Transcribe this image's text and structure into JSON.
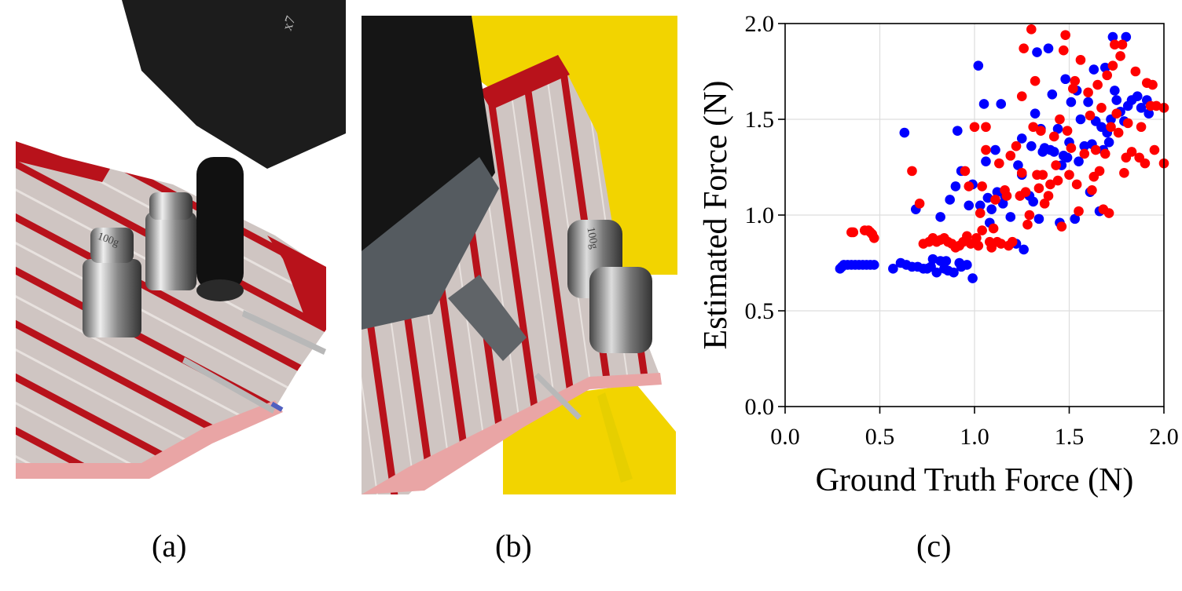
{
  "panels": {
    "a": {
      "caption": "(a)",
      "content": "photo: robot gripper pressing on knitted red-and-pink striped sensor fabric with two 100g weights and alligator clips",
      "weight_label": "100g"
    },
    "b": {
      "caption": "(b)",
      "content": "photo: knitted sensor fabric draped over yellow robot arm, gripper pressing with two weights and alligator clip",
      "weight_label": "100g"
    },
    "c": {
      "caption": "(c)"
    }
  },
  "colors": {
    "series_blue": "#0000ff",
    "series_red": "#ff0000",
    "grid": "#dddddd",
    "fabric_red": "#b8121b",
    "fabric_pink": "#e9a5a5",
    "fabric_grey": "#cfc5c2",
    "robot_yellow": "#f2d400",
    "gripper_black": "#1c1c1c"
  },
  "chart_data": {
    "type": "scatter",
    "title": "",
    "xlabel": "Ground Truth Force (N)",
    "ylabel": "Estimated Force (N)",
    "xlim": [
      0.0,
      2.0
    ],
    "ylim": [
      0.0,
      2.0
    ],
    "xticks": [
      "0.0",
      "0.5",
      "1.0",
      "1.5",
      "2.0"
    ],
    "yticks": [
      "0.0",
      "0.5",
      "1.0",
      "1.5",
      "2.0"
    ],
    "grid": true,
    "legend": null,
    "series": [
      {
        "name": "blue",
        "color": "#0000ff",
        "points": [
          [
            0.29,
            0.72
          ],
          [
            0.3,
            0.73
          ],
          [
            0.31,
            0.74
          ],
          [
            0.33,
            0.74
          ],
          [
            0.35,
            0.74
          ],
          [
            0.37,
            0.74
          ],
          [
            0.39,
            0.74
          ],
          [
            0.41,
            0.74
          ],
          [
            0.43,
            0.74
          ],
          [
            0.45,
            0.74
          ],
          [
            0.47,
            0.74
          ],
          [
            0.57,
            0.72
          ],
          [
            0.61,
            0.75
          ],
          [
            0.64,
            0.74
          ],
          [
            0.67,
            0.73
          ],
          [
            0.7,
            0.73
          ],
          [
            0.73,
            0.72
          ],
          [
            0.75,
            0.72
          ],
          [
            0.77,
            0.73
          ],
          [
            0.78,
            0.77
          ],
          [
            0.8,
            0.7
          ],
          [
            0.82,
            0.76
          ],
          [
            0.84,
            0.72
          ],
          [
            0.85,
            0.76
          ],
          [
            0.86,
            0.71
          ],
          [
            0.89,
            0.7
          ],
          [
            0.92,
            0.75
          ],
          [
            0.93,
            0.73
          ],
          [
            0.96,
            0.74
          ],
          [
            0.99,
            0.67
          ],
          [
            0.63,
            1.43
          ],
          [
            0.69,
            1.03
          ],
          [
            0.82,
            0.99
          ],
          [
            0.87,
            1.08
          ],
          [
            0.9,
            1.15
          ],
          [
            0.91,
            1.44
          ],
          [
            0.93,
            1.23
          ],
          [
            0.97,
            1.05
          ],
          [
            0.99,
            1.16
          ],
          [
            1.02,
            1.78
          ],
          [
            1.03,
            1.05
          ],
          [
            1.05,
            1.58
          ],
          [
            1.06,
            1.28
          ],
          [
            1.07,
            1.09
          ],
          [
            1.08,
            0.96
          ],
          [
            1.09,
            1.03
          ],
          [
            1.11,
            1.34
          ],
          [
            1.12,
            1.12
          ],
          [
            1.14,
            1.58
          ],
          [
            1.15,
            1.06
          ],
          [
            1.16,
            1.1
          ],
          [
            1.19,
            0.99
          ],
          [
            1.22,
            0.85
          ],
          [
            1.23,
            1.26
          ],
          [
            1.25,
            1.4
          ],
          [
            1.25,
            1.21
          ],
          [
            1.26,
            0.82
          ],
          [
            1.29,
            1.1
          ],
          [
            1.3,
            1.36
          ],
          [
            1.31,
            1.07
          ],
          [
            1.32,
            1.53
          ],
          [
            1.33,
            1.85
          ],
          [
            1.34,
            0.98
          ],
          [
            1.35,
            1.45
          ],
          [
            1.36,
            1.33
          ],
          [
            1.37,
            1.35
          ],
          [
            1.39,
            1.87
          ],
          [
            1.4,
            1.34
          ],
          [
            1.41,
            1.63
          ],
          [
            1.42,
            1.33
          ],
          [
            1.44,
            1.45
          ],
          [
            1.45,
            0.96
          ],
          [
            1.46,
            1.26
          ],
          [
            1.47,
            1.31
          ],
          [
            1.48,
            1.71
          ],
          [
            1.49,
            1.3
          ],
          [
            1.5,
            1.38
          ],
          [
            1.51,
            1.59
          ],
          [
            1.53,
            0.98
          ],
          [
            1.54,
            1.65
          ],
          [
            1.55,
            1.28
          ],
          [
            1.56,
            1.5
          ],
          [
            1.58,
            1.36
          ],
          [
            1.6,
            1.59
          ],
          [
            1.61,
            1.12
          ],
          [
            1.62,
            1.37
          ],
          [
            1.63,
            1.76
          ],
          [
            1.64,
            1.49
          ],
          [
            1.66,
            1.02
          ],
          [
            1.67,
            1.46
          ],
          [
            1.68,
            1.34
          ],
          [
            1.69,
            1.77
          ],
          [
            1.7,
            1.43
          ],
          [
            1.71,
            1.38
          ],
          [
            1.72,
            1.5
          ],
          [
            1.73,
            1.93
          ],
          [
            1.74,
            1.65
          ],
          [
            1.75,
            1.6
          ],
          [
            1.77,
            1.54
          ],
          [
            1.79,
            1.49
          ],
          [
            1.8,
            1.93
          ],
          [
            1.81,
            1.57
          ],
          [
            1.83,
            1.6
          ],
          [
            1.86,
            1.62
          ],
          [
            1.88,
            1.56
          ],
          [
            1.91,
            1.6
          ],
          [
            1.92,
            1.53
          ]
        ]
      },
      {
        "name": "red",
        "color": "#ff0000",
        "points": [
          [
            0.35,
            0.91
          ],
          [
            0.36,
            0.91
          ],
          [
            0.42,
            0.92
          ],
          [
            0.44,
            0.92
          ],
          [
            0.45,
            0.91
          ],
          [
            0.46,
            0.9
          ],
          [
            0.47,
            0.88
          ],
          [
            0.67,
            1.23
          ],
          [
            0.71,
            1.06
          ],
          [
            0.73,
            0.85
          ],
          [
            0.76,
            0.86
          ],
          [
            0.78,
            0.88
          ],
          [
            0.8,
            0.86
          ],
          [
            0.82,
            0.87
          ],
          [
            0.84,
            0.88
          ],
          [
            0.86,
            0.86
          ],
          [
            0.88,
            0.85
          ],
          [
            0.9,
            0.83
          ],
          [
            0.92,
            0.84
          ],
          [
            0.94,
            0.86
          ],
          [
            0.95,
            1.23
          ],
          [
            0.96,
            0.89
          ],
          [
            0.97,
            1.15
          ],
          [
            0.98,
            0.85
          ],
          [
            1.0,
            1.46
          ],
          [
            1.01,
            0.88
          ],
          [
            1.02,
            0.84
          ],
          [
            1.03,
            1.01
          ],
          [
            1.04,
            0.92
          ],
          [
            1.04,
            1.15
          ],
          [
            1.06,
            1.46
          ],
          [
            1.06,
            1.34
          ],
          [
            1.08,
            0.86
          ],
          [
            1.09,
            0.83
          ],
          [
            1.1,
            0.93
          ],
          [
            1.11,
            1.08
          ],
          [
            1.12,
            0.86
          ],
          [
            1.13,
            1.27
          ],
          [
            1.14,
            0.85
          ],
          [
            1.16,
            1.13
          ],
          [
            1.17,
            1.1
          ],
          [
            1.18,
            0.84
          ],
          [
            1.19,
            1.31
          ],
          [
            1.2,
            0.86
          ],
          [
            1.22,
            1.36
          ],
          [
            1.24,
            1.1
          ],
          [
            1.25,
            1.22
          ],
          [
            1.25,
            1.62
          ],
          [
            1.26,
            1.87
          ],
          [
            1.27,
            1.12
          ],
          [
            1.28,
            0.95
          ],
          [
            1.29,
            1.0
          ],
          [
            1.3,
            1.97
          ],
          [
            1.31,
            1.46
          ],
          [
            1.32,
            1.7
          ],
          [
            1.33,
            1.21
          ],
          [
            1.34,
            1.14
          ],
          [
            1.35,
            1.44
          ],
          [
            1.36,
            1.21
          ],
          [
            1.37,
            1.06
          ],
          [
            1.39,
            1.1
          ],
          [
            1.4,
            1.16
          ],
          [
            1.42,
            1.41
          ],
          [
            1.43,
            1.26
          ],
          [
            1.44,
            1.18
          ],
          [
            1.45,
            1.5
          ],
          [
            1.46,
            0.94
          ],
          [
            1.47,
            1.86
          ],
          [
            1.48,
            1.94
          ],
          [
            1.49,
            1.44
          ],
          [
            1.5,
            1.21
          ],
          [
            1.51,
            1.35
          ],
          [
            1.52,
            1.66
          ],
          [
            1.53,
            1.7
          ],
          [
            1.54,
            1.16
          ],
          [
            1.55,
            1.02
          ],
          [
            1.56,
            1.81
          ],
          [
            1.58,
            1.32
          ],
          [
            1.6,
            1.64
          ],
          [
            1.61,
            1.52
          ],
          [
            1.62,
            1.13
          ],
          [
            1.63,
            1.2
          ],
          [
            1.64,
            1.34
          ],
          [
            1.65,
            1.68
          ],
          [
            1.66,
            1.23
          ],
          [
            1.67,
            1.56
          ],
          [
            1.68,
            1.03
          ],
          [
            1.69,
            1.32
          ],
          [
            1.7,
            1.73
          ],
          [
            1.71,
            1.01
          ],
          [
            1.72,
            1.46
          ],
          [
            1.73,
            1.78
          ],
          [
            1.74,
            1.89
          ],
          [
            1.75,
            1.53
          ],
          [
            1.76,
            1.43
          ],
          [
            1.77,
            1.83
          ],
          [
            1.78,
            1.89
          ],
          [
            1.79,
            1.22
          ],
          [
            1.8,
            1.3
          ],
          [
            1.81,
            1.48
          ],
          [
            1.83,
            1.33
          ],
          [
            1.85,
            1.75
          ],
          [
            1.87,
            1.3
          ],
          [
            1.88,
            1.46
          ],
          [
            1.9,
            1.27
          ],
          [
            1.91,
            1.69
          ],
          [
            1.93,
            1.57
          ],
          [
            1.94,
            1.68
          ],
          [
            1.95,
            1.34
          ],
          [
            1.96,
            1.57
          ],
          [
            2.0,
            1.27
          ],
          [
            2.0,
            1.56
          ]
        ]
      }
    ]
  }
}
